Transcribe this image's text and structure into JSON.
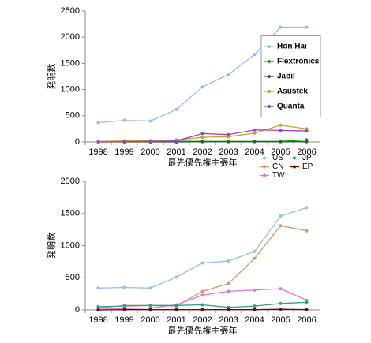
{
  "chart_data": [
    {
      "type": "line",
      "y_label": "発明数",
      "x_label": "最先優先権主張年",
      "categories": [
        "1998",
        "1999",
        "2000",
        "2001",
        "2002",
        "2003",
        "2004",
        "2005",
        "2006"
      ],
      "ylim": [
        0,
        2500
      ],
      "yticks": [
        0,
        500,
        1000,
        1500,
        2000,
        2500
      ],
      "grid": false,
      "legend": {
        "position": "right",
        "columns": 1
      },
      "series": [
        {
          "name": "Hon Hai",
          "color": "#8fbfef",
          "values": [
            370,
            410,
            400,
            620,
            1050,
            1290,
            1670,
            2190,
            2190
          ]
        },
        {
          "name": "Flextronics",
          "color": "#1a9a1a",
          "values": [
            5,
            10,
            10,
            15,
            10,
            10,
            10,
            10,
            40
          ]
        },
        {
          "name": "Jabil",
          "color": "#2f5f2f",
          "values": [
            0,
            0,
            0,
            0,
            5,
            5,
            5,
            5,
            5
          ]
        },
        {
          "name": "Asustek",
          "color": "#d0a020",
          "values": [
            10,
            20,
            25,
            40,
            90,
            100,
            170,
            320,
            250
          ]
        },
        {
          "name": "Quanta",
          "color": "#a040d0",
          "values": [
            0,
            5,
            10,
            20,
            160,
            140,
            230,
            220,
            210
          ]
        }
      ]
    },
    {
      "type": "line",
      "y_label": "発明数",
      "x_label": "最先優先権主張年",
      "categories": [
        "1998",
        "1999",
        "2000",
        "2001",
        "2002",
        "2003",
        "2004",
        "2005",
        "2006"
      ],
      "ylim": [
        0,
        2000
      ],
      "yticks": [
        0,
        500,
        1000,
        1500,
        2000
      ],
      "grid": false,
      "legend": {
        "position": "top-right",
        "columns": 2
      },
      "series": [
        {
          "name": "US",
          "color": "#8fbfef",
          "values": [
            340,
            350,
            340,
            510,
            730,
            760,
            910,
            1460,
            1590
          ]
        },
        {
          "name": "CN",
          "color": "#d09a6a",
          "values": [
            30,
            70,
            70,
            60,
            290,
            410,
            800,
            1310,
            1230
          ]
        },
        {
          "name": "TW",
          "color": "#f070d0",
          "values": [
            10,
            20,
            30,
            80,
            230,
            290,
            310,
            330,
            150
          ]
        },
        {
          "name": "JP",
          "color": "#2f9f8f",
          "values": [
            50,
            60,
            70,
            70,
            80,
            40,
            60,
            100,
            120
          ]
        },
        {
          "name": "EP",
          "color": "#800000",
          "values": [
            0,
            5,
            5,
            5,
            5,
            5,
            5,
            10,
            5
          ]
        }
      ]
    }
  ]
}
